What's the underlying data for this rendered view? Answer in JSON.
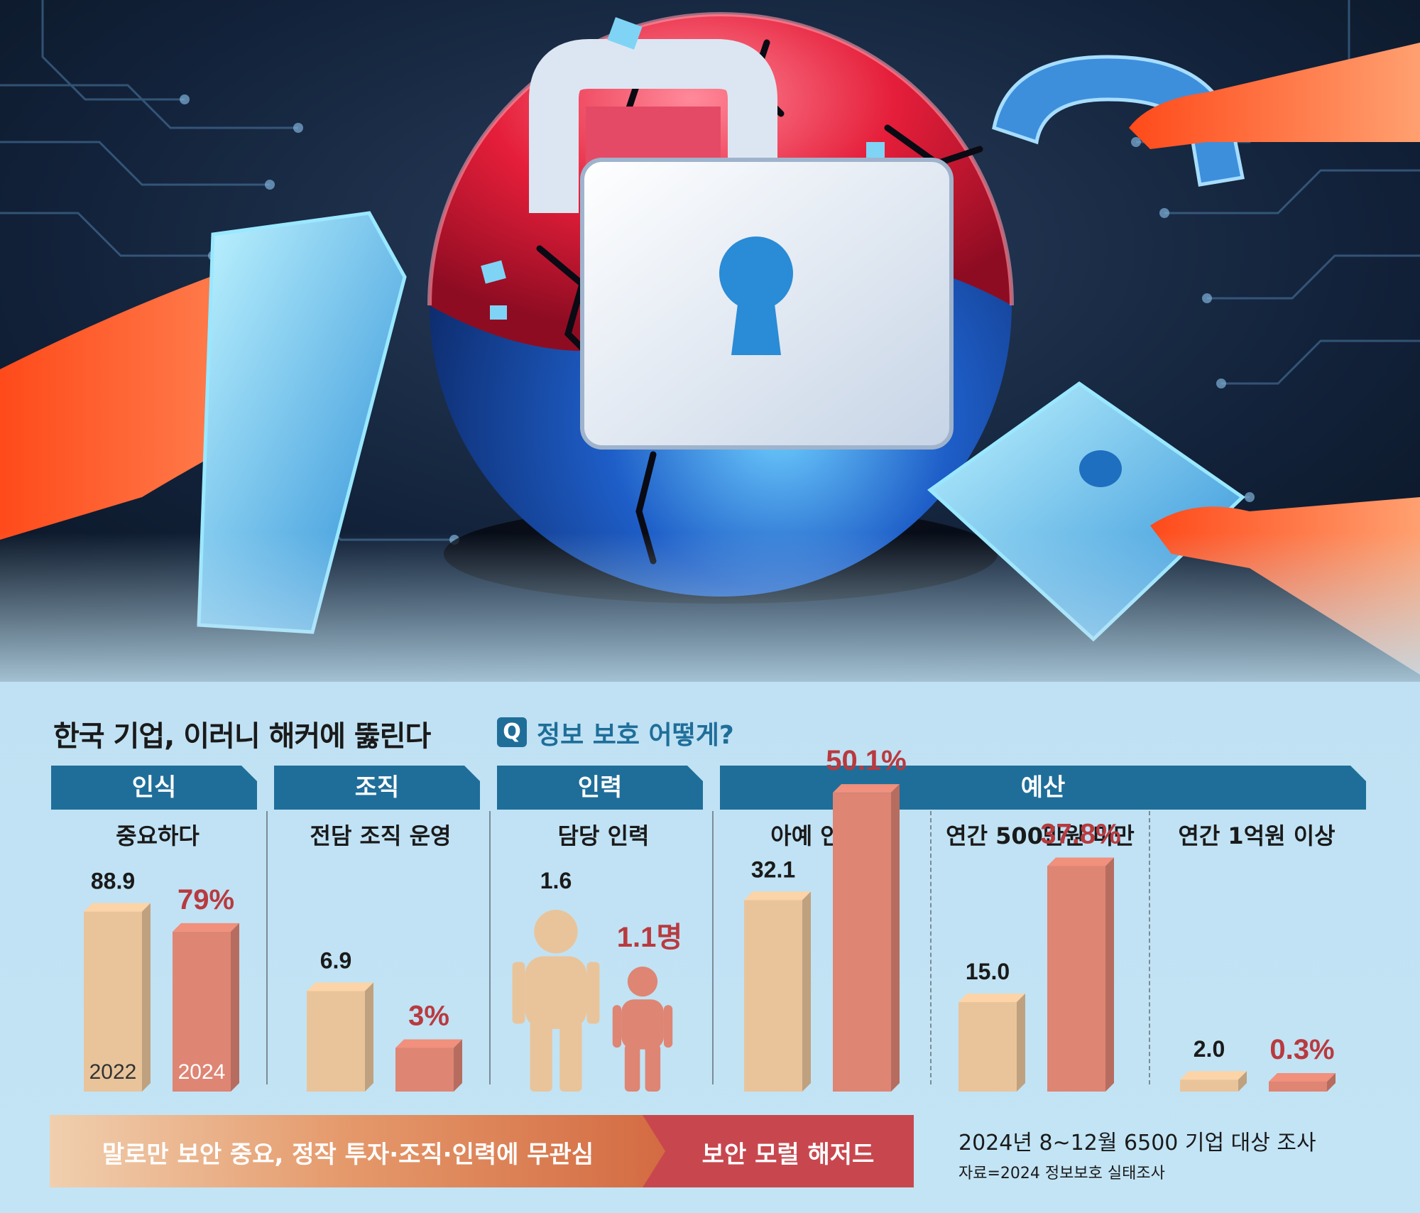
{
  "title": "한국 기업, 이러니 해커에 뚫린다",
  "question": {
    "badge": "Q",
    "text": "정보 보호 어떻게?"
  },
  "categories": [
    "인식",
    "조직",
    "인력",
    "예산"
  ],
  "colors": {
    "y2022": "#e9c49b",
    "y2024": "#de8574",
    "tab": "#1f6e9a",
    "highlight": "#b83a3f"
  },
  "chart_data": [
    {
      "type": "bar",
      "title": "중요하다",
      "categories": [
        "2022",
        "2024"
      ],
      "values": [
        88.9,
        79
      ],
      "labels": [
        "88.9",
        "79%"
      ]
    },
    {
      "type": "bar",
      "title": "전담 조직 운영",
      "categories": [
        "2022",
        "2024"
      ],
      "values": [
        6.9,
        3
      ],
      "labels": [
        "6.9",
        "3%"
      ]
    },
    {
      "type": "bar",
      "title": "담당 인력",
      "categories": [
        "2022",
        "2024"
      ],
      "values": [
        1.6,
        1.1
      ],
      "labels": [
        "1.6",
        "1.1명"
      ]
    },
    {
      "type": "bar",
      "title": "아예 안 쓴다",
      "categories": [
        "2022",
        "2024"
      ],
      "values": [
        32.1,
        50.1
      ],
      "labels": [
        "32.1",
        "50.1%"
      ]
    },
    {
      "type": "bar",
      "title": "연간 500만원 미만",
      "categories": [
        "2022",
        "2024"
      ],
      "values": [
        15.0,
        37.8
      ],
      "labels": [
        "15.0",
        "37.8%"
      ]
    },
    {
      "type": "bar",
      "title": "연간 1억원 이상",
      "categories": [
        "2022",
        "2024"
      ],
      "values": [
        2.0,
        0.3
      ],
      "labels": [
        "2.0",
        "0.3%"
      ]
    }
  ],
  "banner": {
    "left": "말로만 보안 중요, 정작 투자·조직·인력에 무관심",
    "right": "보안 모럴 해저드"
  },
  "note": "2024년 8~12월 6500 기업 대상 조사",
  "source": "자료=2024 정보보호 실태조사"
}
